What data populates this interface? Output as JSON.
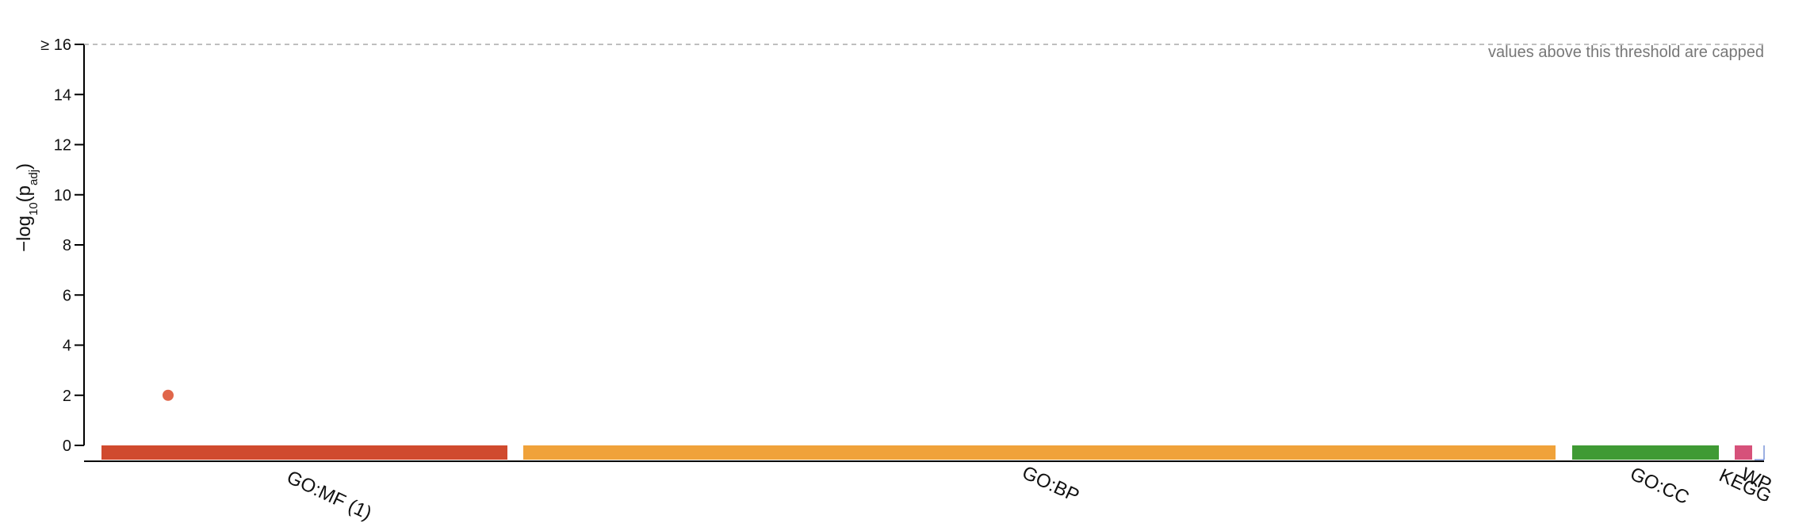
{
  "chart_data": {
    "type": "scatter",
    "ylabel": "-log10(padj)",
    "ylabel_parts": {
      "prefix": "−log",
      "sub": "10",
      "open": "(p",
      "sub2": "adj",
      "close": ")"
    },
    "ylim": [
      0,
      16
    ],
    "yticks": [
      "0",
      "2",
      "4",
      "6",
      "8",
      "10",
      "12",
      "14",
      "≥ 16"
    ],
    "threshold": {
      "value": 16,
      "note": "values above this threshold are capped"
    },
    "sources": [
      {
        "name": "GO:MF",
        "label": "GO:MF (1)",
        "color": "#d04a2e"
      },
      {
        "name": "GO:BP",
        "label": "GO:BP",
        "color": "#f0a23a"
      },
      {
        "name": "GO:CC",
        "label": "GO:CC",
        "color": "#3f9a34"
      },
      {
        "name": "KEGG",
        "label": "KEGG",
        "color": "#d6517a"
      },
      {
        "name": "WP",
        "label": "WP",
        "color": "#3a5fc4"
      }
    ],
    "points": [
      {
        "source": "GO:MF",
        "y": 2.0,
        "color": "#e0664a"
      }
    ],
    "grid": false
  }
}
